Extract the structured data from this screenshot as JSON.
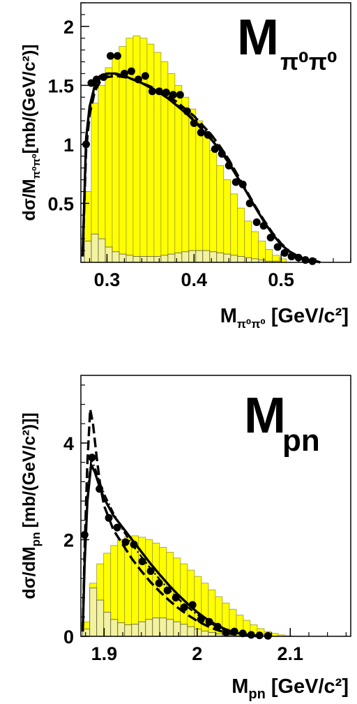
{
  "chart_data": [
    {
      "type": "line",
      "panel_label_main": "M",
      "panel_label_sub": "π⁰π⁰",
      "ylabel": "dσ/M",
      "ylabel_sub": "π⁰π⁰",
      "ylabel_units": "[mb/(GeV/c²)]",
      "xlabel": "M",
      "xlabel_sub": "π⁰π⁰",
      "xlabel_units": "[GeV/c²]",
      "xlim": [
        0.27,
        0.58
      ],
      "ylim": [
        0.0,
        2.2
      ],
      "x_ticks": [
        0.3,
        0.4,
        0.5
      ],
      "x_tick_labels": [
        "0.3",
        "0.4",
        "0.5"
      ],
      "y_ticks": [
        0.5,
        1.0,
        1.5,
        2.0
      ],
      "y_tick_labels": [
        "0.5",
        "1",
        "1.5",
        "2"
      ],
      "histogram_total": {
        "bin_width": 0.008,
        "x_start": 0.274,
        "values": [
          0.6,
          1.35,
          1.5,
          1.65,
          1.75,
          1.83,
          1.9,
          1.92,
          1.9,
          1.85,
          1.78,
          1.7,
          1.6,
          1.5,
          1.4,
          1.3,
          1.2,
          1.08,
          0.95,
          0.82,
          0.7,
          0.58,
          0.46,
          0.35,
          0.26,
          0.18,
          0.11,
          0.06,
          0.03
        ]
      },
      "histogram_background": {
        "bin_width": 0.008,
        "x_start": 0.274,
        "values": [
          0.18,
          0.24,
          0.2,
          0.13,
          0.09,
          0.07,
          0.06,
          0.05,
          0.05,
          0.05,
          0.05,
          0.06,
          0.07,
          0.08,
          0.09,
          0.1,
          0.1,
          0.1,
          0.09,
          0.08,
          0.07,
          0.06,
          0.05,
          0.04,
          0.03,
          0.02,
          0.01,
          0.01,
          0.0
        ]
      },
      "data_points": {
        "x": [
          0.276,
          0.282,
          0.288,
          0.296,
          0.304,
          0.312,
          0.32,
          0.328,
          0.336,
          0.344,
          0.352,
          0.36,
          0.368,
          0.376,
          0.384,
          0.392,
          0.4,
          0.408,
          0.416,
          0.424,
          0.432,
          0.44,
          0.448,
          0.456,
          0.464,
          0.472,
          0.48,
          0.488,
          0.496,
          0.504,
          0.512,
          0.52,
          0.528,
          0.536
        ],
        "y": [
          1.0,
          1.52,
          1.55,
          1.57,
          1.75,
          1.75,
          1.6,
          1.62,
          1.55,
          1.58,
          1.45,
          1.45,
          1.44,
          1.42,
          1.42,
          1.28,
          1.18,
          1.1,
          1.08,
          0.96,
          0.92,
          0.82,
          0.68,
          0.66,
          0.5,
          0.34,
          0.31,
          0.21,
          0.13,
          0.08,
          0.05,
          0.04,
          0.02,
          0.01
        ]
      },
      "series": [
        {
          "style": "solid",
          "x": [
            0.272,
            0.276,
            0.28,
            0.286,
            0.292,
            0.3,
            0.31,
            0.32,
            0.33,
            0.34,
            0.35,
            0.36,
            0.37,
            0.38,
            0.39,
            0.4,
            0.41,
            0.42,
            0.43,
            0.44,
            0.45,
            0.46,
            0.47,
            0.48,
            0.49,
            0.5,
            0.51,
            0.52,
            0.53,
            0.54,
            0.545
          ],
          "y": [
            0.05,
            1.05,
            1.32,
            1.5,
            1.58,
            1.6,
            1.6,
            1.58,
            1.55,
            1.52,
            1.48,
            1.44,
            1.39,
            1.33,
            1.27,
            1.2,
            1.12,
            1.04,
            0.95,
            0.84,
            0.72,
            0.6,
            0.47,
            0.35,
            0.24,
            0.15,
            0.09,
            0.05,
            0.02,
            0.01,
            0.0
          ]
        },
        {
          "style": "dashed",
          "x": [
            0.272,
            0.276,
            0.28,
            0.286,
            0.292,
            0.3,
            0.31,
            0.32,
            0.33,
            0.34,
            0.35,
            0.36,
            0.37,
            0.38,
            0.39,
            0.4,
            0.41,
            0.42,
            0.43,
            0.44,
            0.45,
            0.46,
            0.47,
            0.48,
            0.49,
            0.5,
            0.51,
            0.52,
            0.53,
            0.54,
            0.545
          ],
          "y": [
            0.05,
            0.95,
            1.25,
            1.45,
            1.53,
            1.57,
            1.58,
            1.57,
            1.55,
            1.52,
            1.49,
            1.45,
            1.41,
            1.36,
            1.3,
            1.24,
            1.16,
            1.08,
            0.98,
            0.87,
            0.74,
            0.61,
            0.48,
            0.36,
            0.25,
            0.16,
            0.09,
            0.05,
            0.02,
            0.01,
            0.0
          ]
        },
        {
          "style": "dashdot",
          "x": [
            0.272,
            0.276,
            0.28,
            0.286,
            0.292,
            0.3,
            0.31,
            0.32,
            0.33,
            0.34,
            0.35,
            0.36,
            0.37,
            0.38,
            0.39,
            0.4,
            0.41,
            0.42,
            0.43,
            0.44,
            0.45,
            0.46,
            0.47,
            0.48,
            0.49,
            0.5,
            0.51,
            0.52,
            0.53,
            0.54,
            0.545
          ],
          "y": [
            0.05,
            1.0,
            1.28,
            1.47,
            1.55,
            1.58,
            1.59,
            1.58,
            1.55,
            1.52,
            1.48,
            1.44,
            1.39,
            1.34,
            1.28,
            1.21,
            1.14,
            1.06,
            0.97,
            0.86,
            0.73,
            0.6,
            0.47,
            0.35,
            0.24,
            0.15,
            0.09,
            0.05,
            0.02,
            0.01,
            0.0
          ]
        }
      ]
    },
    {
      "type": "line",
      "panel_label_main": "M",
      "panel_label_sub": "pn",
      "ylabel": "dσ/dM",
      "ylabel_sub": "pn",
      "ylabel_units": "[mb/(GeV/c²)]]",
      "xlabel": "M",
      "xlabel_sub": "pn",
      "xlabel_units": "[GeV/c²]",
      "xlim": [
        1.875,
        2.165
      ],
      "ylim": [
        0.0,
        5.4
      ],
      "x_ticks": [
        1.9,
        2.0,
        2.1
      ],
      "x_tick_labels": [
        "1.9",
        "2",
        "2.1"
      ],
      "y_ticks": [
        0,
        2,
        4
      ],
      "y_tick_labels": [
        "0",
        "2",
        "4"
      ],
      "histogram_total": {
        "bin_width": 0.0075,
        "x_start": 1.877,
        "values": [
          0.3,
          1.1,
          1.5,
          1.72,
          1.88,
          2.0,
          2.06,
          2.08,
          2.05,
          2.0,
          1.93,
          1.84,
          1.74,
          1.62,
          1.5,
          1.37,
          1.24,
          1.1,
          0.96,
          0.82,
          0.69,
          0.56,
          0.44,
          0.33,
          0.24,
          0.16,
          0.1,
          0.06,
          0.03,
          0.01
        ]
      },
      "histogram_background": {
        "bin_width": 0.0075,
        "x_start": 1.877,
        "values": [
          0.15,
          1.0,
          0.75,
          0.5,
          0.35,
          0.28,
          0.24,
          0.25,
          0.3,
          0.35,
          0.38,
          0.38,
          0.35,
          0.3,
          0.25,
          0.2,
          0.15,
          0.11,
          0.08,
          0.05,
          0.03,
          0.02,
          0.01,
          0.01,
          0.0,
          0.0,
          0.0,
          0.0,
          0.0,
          0.0
        ]
      },
      "data_points": {
        "x": [
          1.879,
          1.887,
          1.895,
          1.905,
          1.914,
          1.923,
          1.932,
          1.941,
          1.95,
          1.959,
          1.968,
          1.977,
          1.986,
          1.995,
          2.004,
          2.013,
          2.022,
          2.031,
          2.04,
          2.049,
          2.058,
          2.067,
          2.076
        ],
        "y": [
          2.1,
          3.7,
          3.05,
          2.45,
          2.25,
          1.95,
          1.9,
          1.55,
          1.35,
          1.1,
          0.95,
          0.8,
          0.6,
          0.65,
          0.35,
          0.3,
          0.2,
          0.08,
          0.1,
          0.06,
          0.03,
          0.02,
          0.01
        ]
      },
      "series": [
        {
          "style": "solid",
          "x": [
            1.877,
            1.879,
            1.882,
            1.886,
            1.89,
            1.895,
            1.9,
            1.91,
            1.92,
            1.93,
            1.94,
            1.95,
            1.96,
            1.97,
            1.98,
            1.99,
            2.0,
            2.01,
            2.02,
            2.03,
            2.04,
            2.05,
            2.06,
            2.07
          ],
          "y": [
            0.1,
            1.5,
            2.8,
            3.55,
            3.4,
            3.1,
            2.85,
            2.5,
            2.25,
            2.0,
            1.75,
            1.5,
            1.27,
            1.05,
            0.85,
            0.67,
            0.5,
            0.36,
            0.24,
            0.15,
            0.08,
            0.04,
            0.02,
            0.0
          ]
        },
        {
          "style": "dashed",
          "x": [
            1.877,
            1.879,
            1.882,
            1.885,
            1.888,
            1.892,
            1.896,
            1.9,
            1.91,
            1.92,
            1.93,
            1.94,
            1.95,
            1.96,
            1.97,
            1.98,
            1.99,
            2.0,
            2.01,
            2.02,
            2.03,
            2.04,
            2.05,
            2.06,
            2.07
          ],
          "y": [
            0.1,
            1.8,
            3.6,
            4.7,
            4.4,
            3.7,
            3.1,
            2.7,
            2.2,
            1.9,
            1.6,
            1.35,
            1.12,
            0.92,
            0.74,
            0.58,
            0.44,
            0.32,
            0.22,
            0.14,
            0.08,
            0.04,
            0.02,
            0.01,
            0.0
          ]
        },
        {
          "style": "dashdot",
          "x": [
            1.877,
            1.879,
            1.882,
            1.886,
            1.89,
            1.895,
            1.9,
            1.91,
            1.92,
            1.93,
            1.94,
            1.95,
            1.96,
            1.97,
            1.98,
            1.99,
            2.0,
            2.01,
            2.02,
            2.03,
            2.04,
            2.05,
            2.06,
            2.07
          ],
          "y": [
            0.1,
            1.6,
            3.0,
            3.65,
            3.5,
            3.2,
            2.95,
            2.55,
            2.2,
            1.9,
            1.65,
            1.4,
            1.17,
            0.96,
            0.77,
            0.6,
            0.45,
            0.32,
            0.21,
            0.13,
            0.07,
            0.04,
            0.02,
            0.0
          ]
        }
      ]
    }
  ]
}
